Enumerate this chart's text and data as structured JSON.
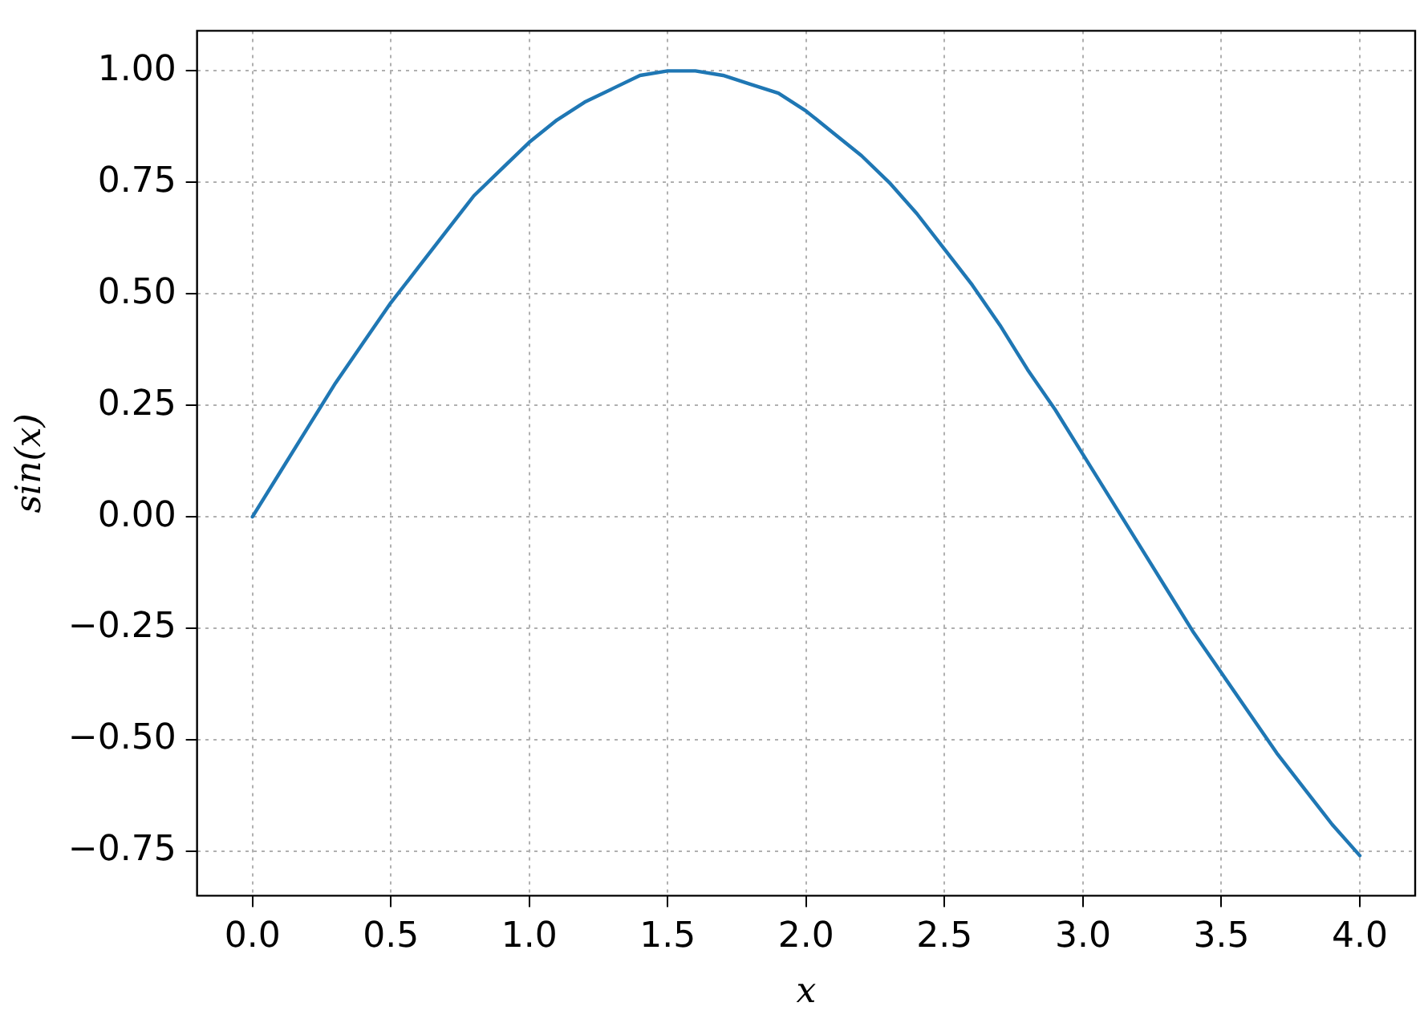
{
  "chart_data": {
    "type": "line",
    "xlabel": "x",
    "ylabel": "sin(x)",
    "x": [
      0,
      0.1,
      0.2,
      0.3,
      0.4,
      0.5,
      0.6,
      0.7,
      0.8,
      0.9,
      1.0,
      1.1,
      1.2,
      1.3,
      1.4,
      1.5,
      1.6,
      1.7,
      1.8,
      1.9,
      2.0,
      2.1,
      2.2,
      2.3,
      2.4,
      2.5,
      2.6,
      2.7,
      2.8,
      2.9,
      3.0,
      3.1,
      3.2,
      3.3,
      3.4,
      3.5,
      3.6,
      3.7,
      3.8,
      3.9,
      4.0
    ],
    "series": [
      {
        "color": "#1f77b4",
        "values": [
          0,
          0.1,
          0.2,
          0.3,
          0.39,
          0.48,
          0.56,
          0.64,
          0.72,
          0.78,
          0.84,
          0.89,
          0.93,
          0.96,
          0.99,
          1.0,
          1.0,
          0.99,
          0.97,
          0.95,
          0.91,
          0.86,
          0.81,
          0.75,
          0.68,
          0.6,
          0.52,
          0.43,
          0.33,
          0.24,
          0.14,
          0.04,
          -0.06,
          -0.16,
          -0.26,
          -0.35,
          -0.44,
          -0.53,
          -0.61,
          -0.69,
          -0.76
        ]
      }
    ],
    "xlim": [
      -0.2,
      4.2
    ],
    "xticks": [
      {
        "value": 0,
        "label": "0.0"
      },
      {
        "value": 0.5,
        "label": "0.5"
      },
      {
        "value": 1,
        "label": "1.0"
      },
      {
        "value": 1.5,
        "label": "1.5"
      },
      {
        "value": 2,
        "label": "2.0"
      },
      {
        "value": 2.5,
        "label": "2.5"
      },
      {
        "value": 3,
        "label": "3.0"
      },
      {
        "value": 3.5,
        "label": "3.5"
      },
      {
        "value": 4,
        "label": "4.0"
      }
    ],
    "ylim": [
      -0.85,
      1.09
    ],
    "yticks": [
      {
        "value": -0.75,
        "label": "−0.75"
      },
      {
        "value": -0.5,
        "label": "−0.50"
      },
      {
        "value": -0.25,
        "label": "−0.25"
      },
      {
        "value": 0,
        "label": "0.00"
      },
      {
        "value": 0.25,
        "label": "0.25"
      },
      {
        "value": 0.5,
        "label": "0.50"
      },
      {
        "value": 0.75,
        "label": "0.75"
      },
      {
        "value": 1,
        "label": "1.00"
      }
    ],
    "grid": true,
    "legend": false,
    "marker": "none",
    "line_style": "solid"
  }
}
